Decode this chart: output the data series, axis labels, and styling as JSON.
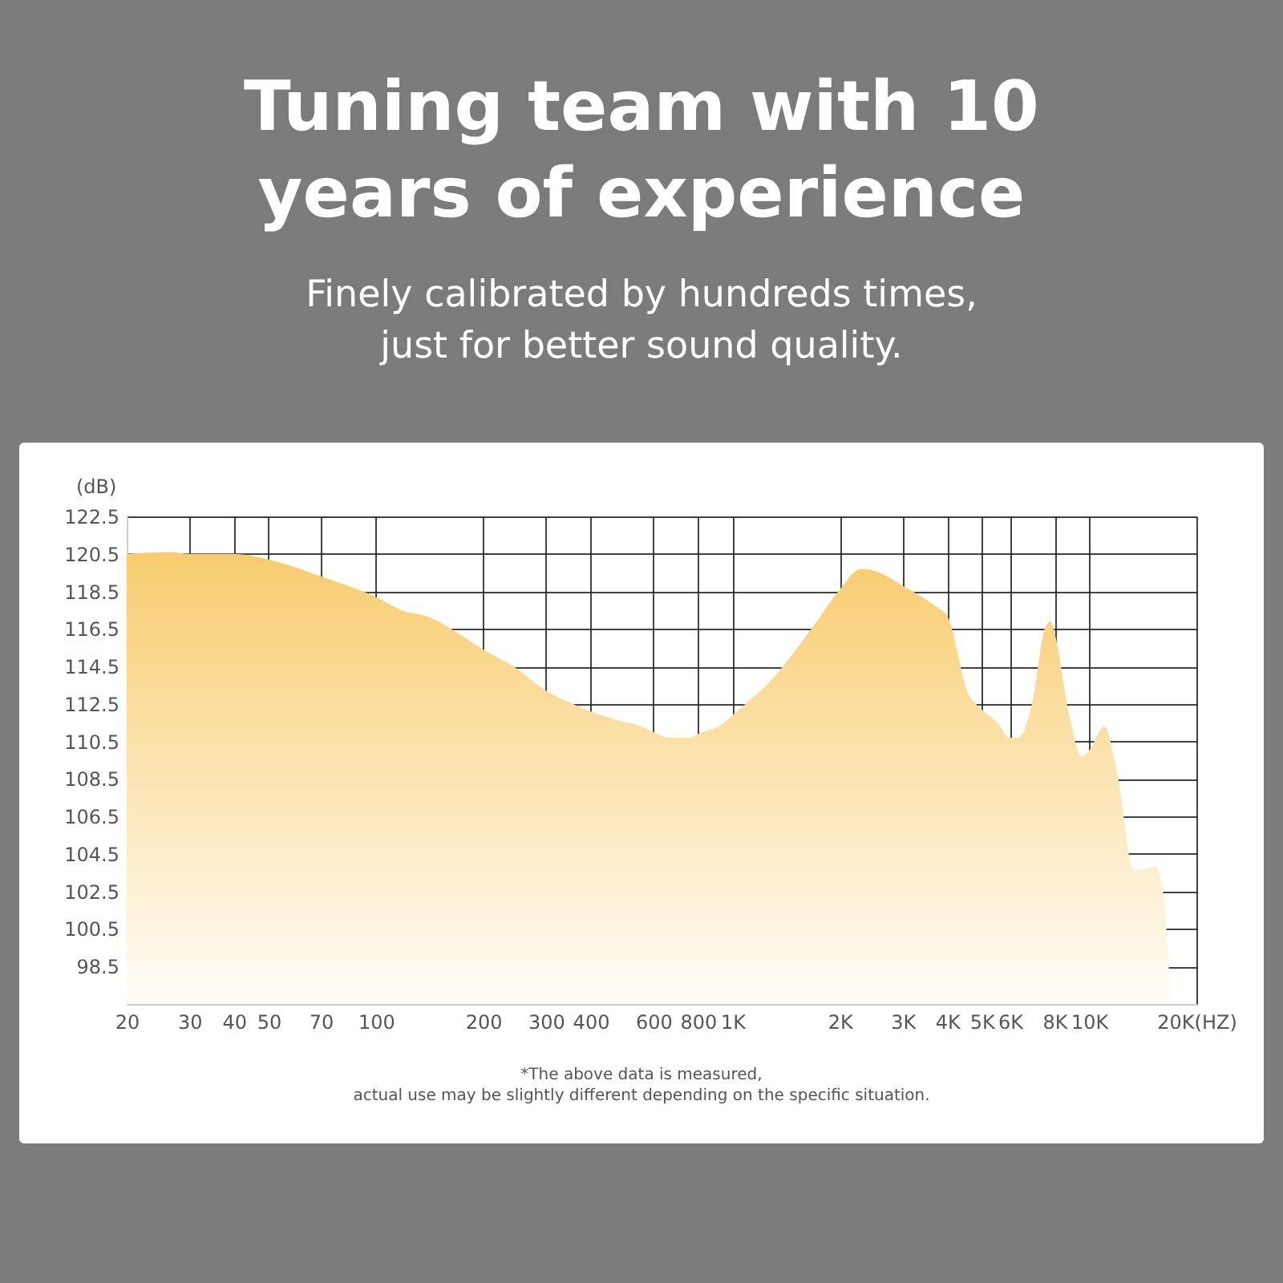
{
  "chart_data": {
    "type": "area",
    "title": "Tuning team with 10 years of experience",
    "subtitle": "Finely calibrated by hundreds times, just for better sound quality.",
    "ylabel": "(dB)",
    "annotations": [
      "*The above data is measured,",
      "actual use may be slightly different depending on the specific situation."
    ],
    "x": [
      20,
      26.6,
      30,
      40,
      50,
      70,
      100,
      118,
      142,
      166,
      200,
      243,
      300,
      367,
      400,
      484,
      556,
      600,
      661,
      759,
      800,
      933,
      1000,
      1274,
      1679,
      2000,
      2292,
      2497,
      3000,
      3714,
      4000,
      4571,
      5000,
      5522,
      6000,
      6340,
      6918,
      7540,
      7800,
      8000,
      8800,
      9530,
      10000,
      11020,
      12020,
      13340,
      15310,
      16110,
      16950
    ],
    "series": [
      {
        "color": "#f8cc6e",
        "values": [
          120.5,
          120.6,
          120.5,
          120.5,
          120.2,
          119.3,
          118.2,
          117.5,
          117.1,
          116.4,
          115.4,
          114.5,
          113.2,
          112.4,
          112.1,
          111.6,
          111.3,
          111.0,
          110.7,
          110.7,
          110.9,
          111.4,
          111.9,
          113.7,
          116.6,
          118.6,
          119.7,
          119.6,
          118.8,
          117.7,
          117.2,
          113.1,
          112.2,
          111.5,
          110.7,
          110.7,
          112.5,
          116.6,
          116.9,
          116.3,
          111.9,
          109.7,
          110.0,
          111.3,
          108.7,
          103.6,
          103.8,
          102.5,
          96.5
        ]
      }
    ],
    "log": "x",
    "xlim": [
      20,
      20000
    ],
    "xticks": [
      20,
      30,
      40,
      50,
      70,
      100,
      200,
      300,
      400,
      600,
      800,
      {
        "value": 1000,
        "label": "1K"
      },
      {
        "value": 2000,
        "label": "2K"
      },
      {
        "value": 3000,
        "label": "3K"
      },
      {
        "value": 4000,
        "label": "4K"
      },
      {
        "value": 5000,
        "label": "5K"
      },
      {
        "value": 6000,
        "label": "6K"
      },
      {
        "value": 8000,
        "label": "8K"
      },
      {
        "value": 10000,
        "label": "10K"
      },
      {
        "value": 20000,
        "label": "20K(HZ)"
      }
    ],
    "ylim": [
      96.5,
      122.5
    ],
    "yticks": [
      98.5,
      100.5,
      102.5,
      104.5,
      106.5,
      108.5,
      110.5,
      112.5,
      114.5,
      116.5,
      118.5,
      120.5,
      122.5
    ],
    "grid": true
  }
}
